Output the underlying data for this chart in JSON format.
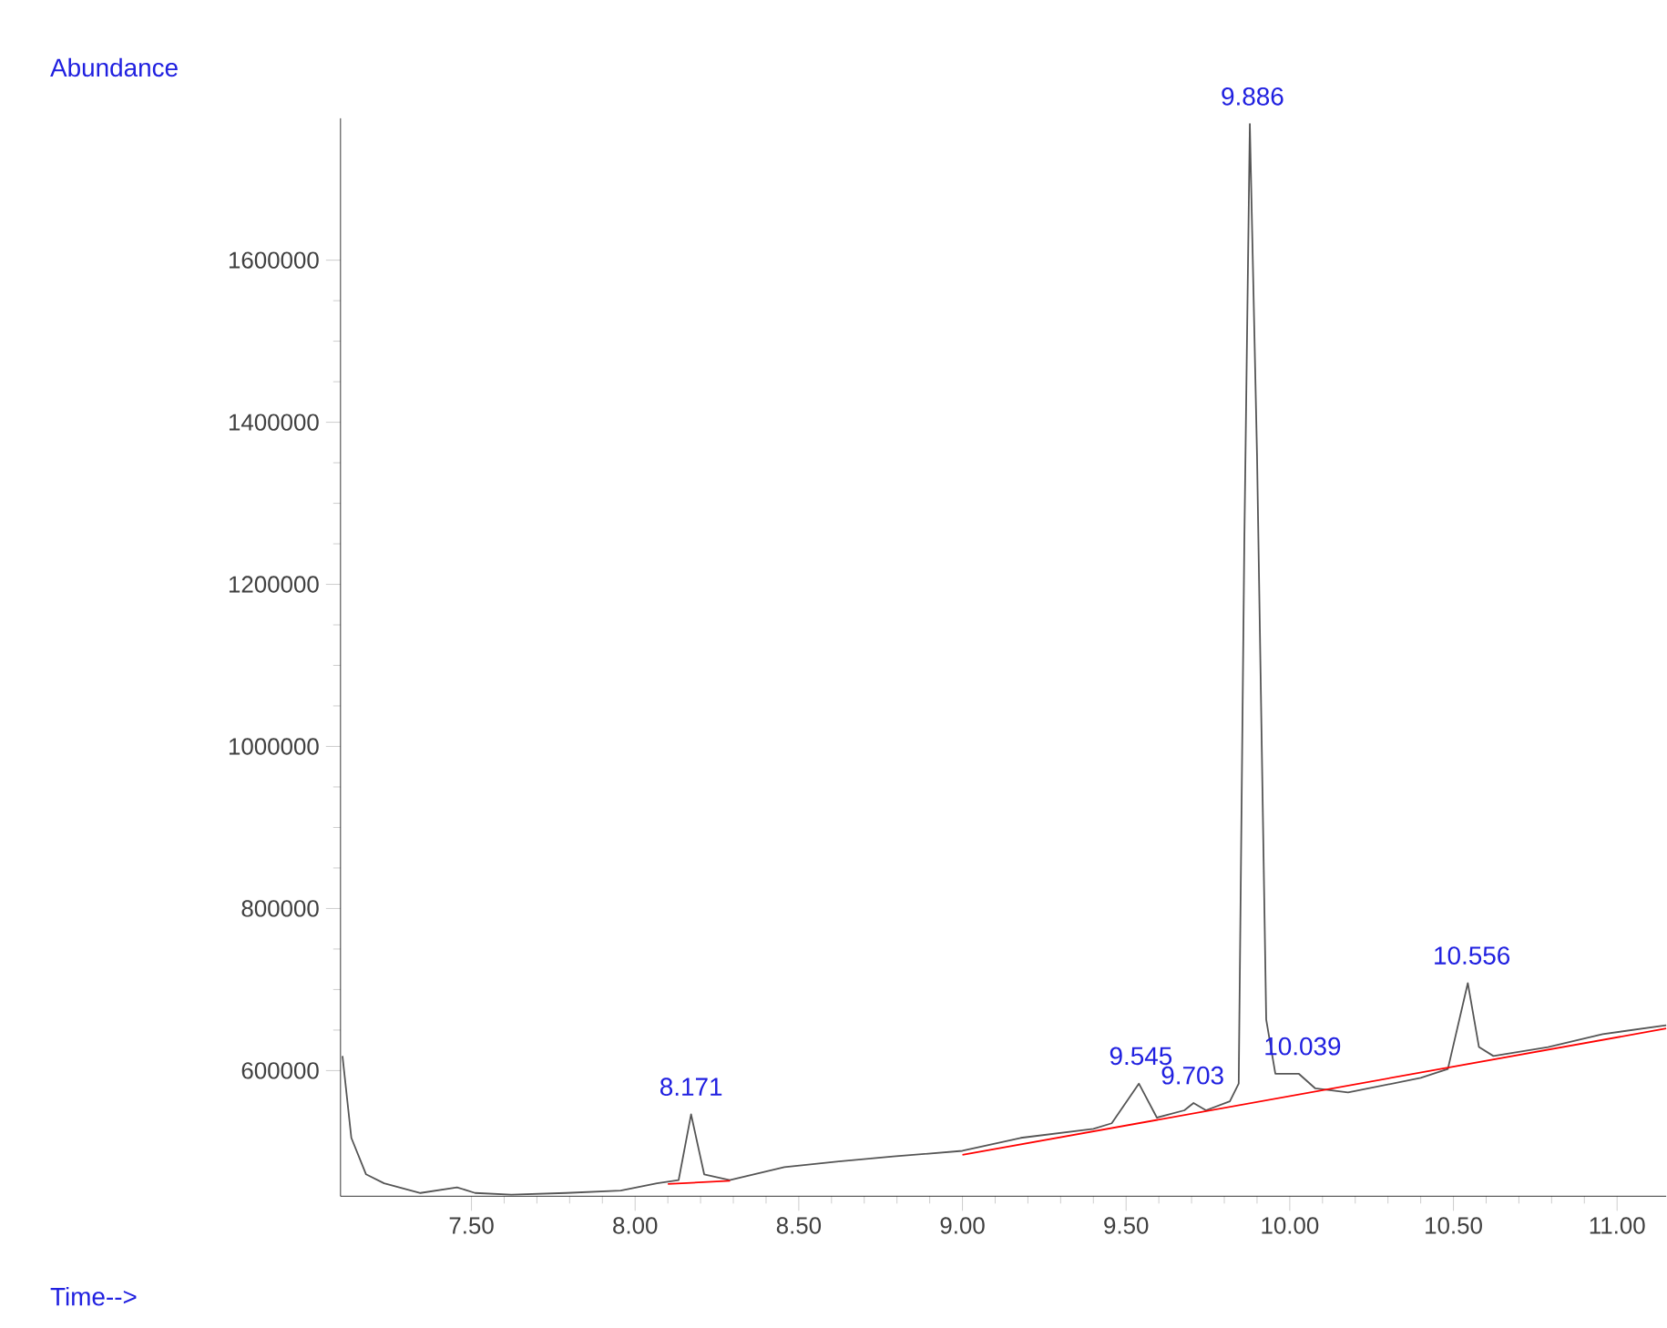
{
  "chart_data": {
    "type": "line",
    "xlabel": "Time-->",
    "ylabel": "Abundance",
    "xlim": [
      7.1,
      11.15
    ],
    "ylim": [
      445000,
      1775000
    ],
    "xticks": [
      {
        "value": 7.5,
        "label": "7.50"
      },
      {
        "value": 8.0,
        "label": "8.00"
      },
      {
        "value": 8.5,
        "label": "8.50"
      },
      {
        "value": 9.0,
        "label": "9.00"
      },
      {
        "value": 9.5,
        "label": "9.50"
      },
      {
        "value": 10.0,
        "label": "10.00"
      },
      {
        "value": 10.5,
        "label": "10.50"
      },
      {
        "value": 11.0,
        "label": "11.00"
      }
    ],
    "yticks": [
      600000,
      800000,
      1000000,
      1200000,
      1400000,
      1600000
    ],
    "series": [
      {
        "color": "#555555",
        "x": [
          7.106,
          7.133,
          7.178,
          7.233,
          7.344,
          7.456,
          7.511,
          7.622,
          7.789,
          7.956,
          8.067,
          8.133,
          8.171,
          8.211,
          8.289,
          8.456,
          8.622,
          8.789,
          9.0,
          9.178,
          9.4,
          9.456,
          9.539,
          9.594,
          9.678,
          9.706,
          9.744,
          9.817,
          9.844,
          9.861,
          9.878,
          9.9,
          9.928,
          9.956,
          10.028,
          10.078,
          10.178,
          10.4,
          10.483,
          10.544,
          10.578,
          10.622,
          10.789,
          10.956,
          11.15
        ],
        "values": [
          618000,
          517000,
          472000,
          461000,
          449000,
          456000,
          449000,
          447000,
          449000,
          452000,
          461000,
          465000,
          546000,
          472000,
          465000,
          481000,
          488000,
          494000,
          501000,
          517000,
          528000,
          535000,
          584000,
          542000,
          551000,
          560000,
          551000,
          562000,
          584000,
          1247000,
          1768000,
          1359000,
          663000,
          596000,
          596000,
          578000,
          573000,
          591000,
          602000,
          708000,
          629000,
          618000,
          629000,
          645000,
          656000
        ]
      },
      {
        "color": "#ff0000",
        "x": [
          8.1,
          8.29
        ],
        "values": [
          460000,
          464000
        ]
      },
      {
        "color": "#ff0000",
        "x": [
          9.0,
          11.15
        ],
        "values": [
          496000,
          652000
        ]
      }
    ],
    "annotations": [
      {
        "text": "8.171",
        "x": 8.171,
        "y": 546000
      },
      {
        "text": "9.545",
        "x": 9.545,
        "y": 584000
      },
      {
        "text": "9.703",
        "x": 9.703,
        "y": 560000
      },
      {
        "text": "9.886",
        "x": 9.886,
        "y": 1768000
      },
      {
        "text": "10.039",
        "x": 10.039,
        "y": 596000
      },
      {
        "text": "10.556",
        "x": 10.556,
        "y": 708000
      }
    ]
  }
}
